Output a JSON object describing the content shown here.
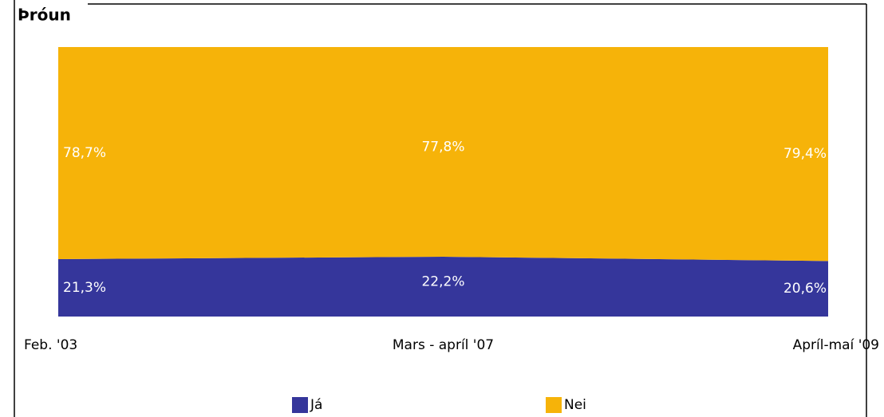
{
  "chart_data": {
    "type": "stacked_area",
    "title": "Þróun",
    "categories": [
      "Feb. '03",
      "Mars - apríl '07",
      "Apríl-maí '09"
    ],
    "ylim": [
      0,
      100
    ],
    "series": [
      {
        "name": "Já",
        "color": "#35369b",
        "values": [
          21.3,
          22.2,
          20.6
        ],
        "value_labels": [
          "21,3%",
          "22,2%",
          "20,6%"
        ]
      },
      {
        "name": "Nei",
        "color": "#f6b309",
        "values": [
          78.7,
          77.8,
          79.4
        ],
        "value_labels": [
          "78,7%",
          "77,8%",
          "79,4%"
        ]
      }
    ],
    "legend": "bottom"
  }
}
